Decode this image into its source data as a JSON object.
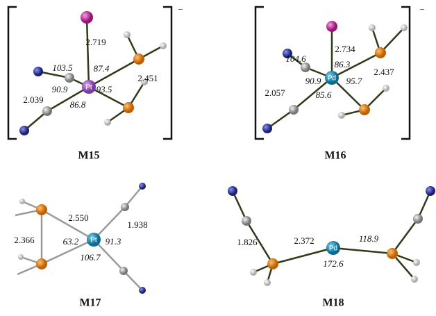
{
  "panels": [
    {
      "title": "M15",
      "charge": "−",
      "metal": "Pt",
      "labels": [
        "2.719",
        "103.5",
        "87.4",
        "2.451",
        "90.9",
        "93.5",
        "2.039",
        "86.8"
      ]
    },
    {
      "title": "M16",
      "charge": "−",
      "metal": "Pd",
      "labels": [
        "2.734",
        "104.6",
        "86.3",
        "2.437",
        "90.9",
        "95.7",
        "2.057",
        "85.6"
      ]
    },
    {
      "title": "M17",
      "metal": "Pt",
      "labels": [
        "2.550",
        "1.938",
        "2.366",
        "63.2",
        "91.3",
        "106.7"
      ]
    },
    {
      "title": "M18",
      "metal": "Pd",
      "labels": [
        "1.826",
        "2.372",
        "118.9",
        "172.6"
      ]
    }
  ]
}
